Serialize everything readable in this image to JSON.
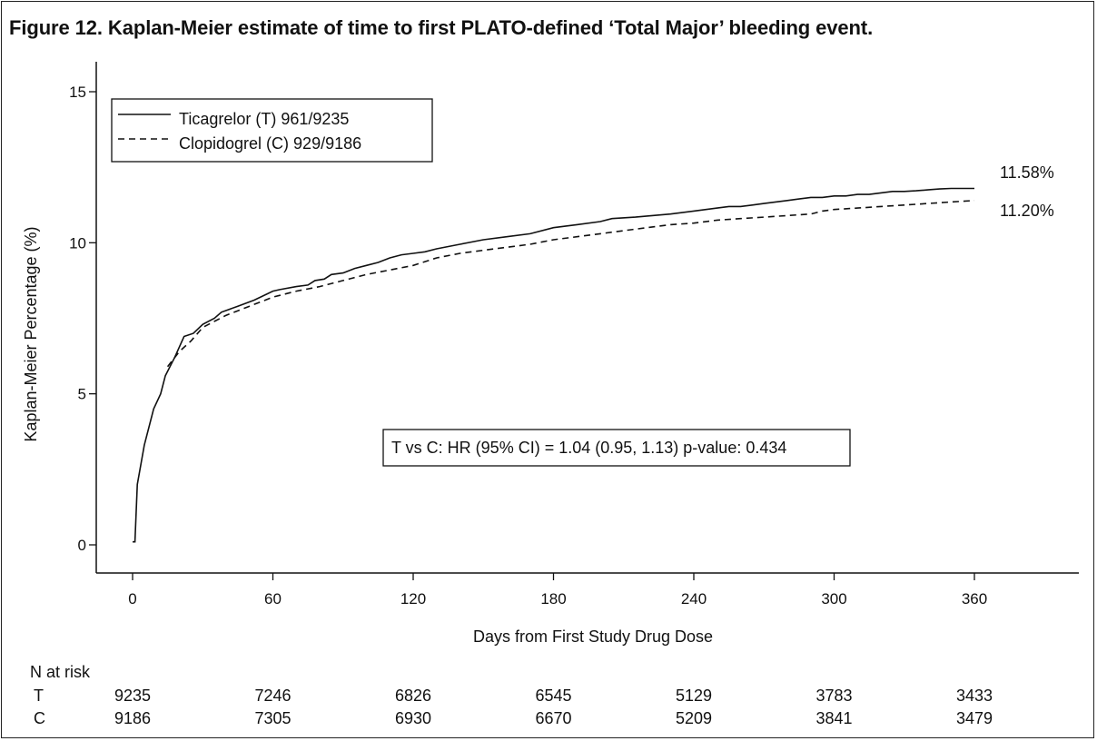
{
  "figure": {
    "title": "Figure 12. Kaplan-Meier estimate of time to first PLATO-defined ‘Total Major’ bleeding event."
  },
  "chart_data": {
    "type": "line",
    "xlabel": "Days from First Study Drug Dose",
    "ylabel": "Kaplan-Meier Percentage (%)",
    "xlim": [
      -10,
      400
    ],
    "ylim": [
      -1,
      16
    ],
    "xticks": [
      0,
      60,
      120,
      180,
      240,
      300,
      360
    ],
    "yticks": [
      0,
      5,
      10,
      15
    ],
    "grid": false,
    "legend_position": "top-left",
    "series": [
      {
        "name": "Ticagrelor (T) 961/9235",
        "line_style": "solid",
        "end_label": "11.58%",
        "points": [
          [
            0,
            0.1
          ],
          [
            1,
            0.1
          ],
          [
            2,
            2.0
          ],
          [
            5,
            3.3
          ],
          [
            9,
            4.5
          ],
          [
            12,
            5.0
          ],
          [
            14,
            5.6
          ],
          [
            18,
            6.2
          ],
          [
            22,
            6.9
          ],
          [
            26,
            7.0
          ],
          [
            30,
            7.3
          ],
          [
            35,
            7.5
          ],
          [
            38,
            7.7
          ],
          [
            45,
            7.9
          ],
          [
            52,
            8.1
          ],
          [
            60,
            8.4
          ],
          [
            63,
            8.45
          ],
          [
            70,
            8.55
          ],
          [
            75,
            8.6
          ],
          [
            78,
            8.75
          ],
          [
            82,
            8.8
          ],
          [
            85,
            8.95
          ],
          [
            90,
            9.0
          ],
          [
            95,
            9.15
          ],
          [
            100,
            9.25
          ],
          [
            105,
            9.35
          ],
          [
            110,
            9.5
          ],
          [
            115,
            9.6
          ],
          [
            120,
            9.65
          ],
          [
            125,
            9.7
          ],
          [
            130,
            9.8
          ],
          [
            140,
            9.95
          ],
          [
            150,
            10.1
          ],
          [
            160,
            10.2
          ],
          [
            170,
            10.3
          ],
          [
            180,
            10.5
          ],
          [
            190,
            10.6
          ],
          [
            200,
            10.7
          ],
          [
            205,
            10.8
          ],
          [
            215,
            10.85
          ],
          [
            230,
            10.95
          ],
          [
            240,
            11.05
          ],
          [
            250,
            11.15
          ],
          [
            255,
            11.2
          ],
          [
            260,
            11.2
          ],
          [
            265,
            11.25
          ],
          [
            270,
            11.3
          ],
          [
            275,
            11.35
          ],
          [
            280,
            11.4
          ],
          [
            285,
            11.45
          ],
          [
            290,
            11.5
          ],
          [
            295,
            11.5
          ],
          [
            300,
            11.55
          ],
          [
            305,
            11.55
          ],
          [
            310,
            11.6
          ],
          [
            315,
            11.6
          ],
          [
            320,
            11.65
          ],
          [
            325,
            11.7
          ],
          [
            330,
            11.7
          ],
          [
            335,
            11.72
          ],
          [
            340,
            11.75
          ],
          [
            345,
            11.78
          ],
          [
            350,
            11.8
          ],
          [
            360,
            11.8
          ]
        ]
      },
      {
        "name": "Clopidogrel (C) 929/9186",
        "line_style": "dashed",
        "end_label": "11.20%",
        "points": [
          [
            15,
            5.9
          ],
          [
            20,
            6.4
          ],
          [
            25,
            6.75
          ],
          [
            30,
            7.2
          ],
          [
            40,
            7.6
          ],
          [
            50,
            7.9
          ],
          [
            60,
            8.2
          ],
          [
            70,
            8.4
          ],
          [
            80,
            8.55
          ],
          [
            90,
            8.75
          ],
          [
            100,
            8.95
          ],
          [
            110,
            9.1
          ],
          [
            120,
            9.25
          ],
          [
            130,
            9.5
          ],
          [
            140,
            9.65
          ],
          [
            150,
            9.75
          ],
          [
            160,
            9.85
          ],
          [
            170,
            9.95
          ],
          [
            180,
            10.1
          ],
          [
            190,
            10.2
          ],
          [
            200,
            10.3
          ],
          [
            210,
            10.4
          ],
          [
            220,
            10.5
          ],
          [
            230,
            10.6
          ],
          [
            240,
            10.65
          ],
          [
            250,
            10.75
          ],
          [
            260,
            10.8
          ],
          [
            270,
            10.85
          ],
          [
            280,
            10.9
          ],
          [
            290,
            10.95
          ],
          [
            295,
            11.05
          ],
          [
            300,
            11.1
          ],
          [
            310,
            11.15
          ],
          [
            320,
            11.2
          ],
          [
            330,
            11.25
          ],
          [
            340,
            11.3
          ],
          [
            350,
            11.35
          ],
          [
            360,
            11.4
          ]
        ]
      }
    ],
    "annotation": "T vs C: HR (95% CI) = 1.04 (0.95, 1.13) p-value: 0.434",
    "risk_table": {
      "header": "N at risk",
      "rows": [
        {
          "label": "T",
          "values": [
            "9235",
            "7246",
            "6826",
            "6545",
            "5129",
            "3783",
            "3433"
          ]
        },
        {
          "label": "C",
          "values": [
            "9186",
            "7305",
            "6930",
            "6670",
            "5209",
            "3841",
            "3479"
          ]
        }
      ]
    }
  }
}
